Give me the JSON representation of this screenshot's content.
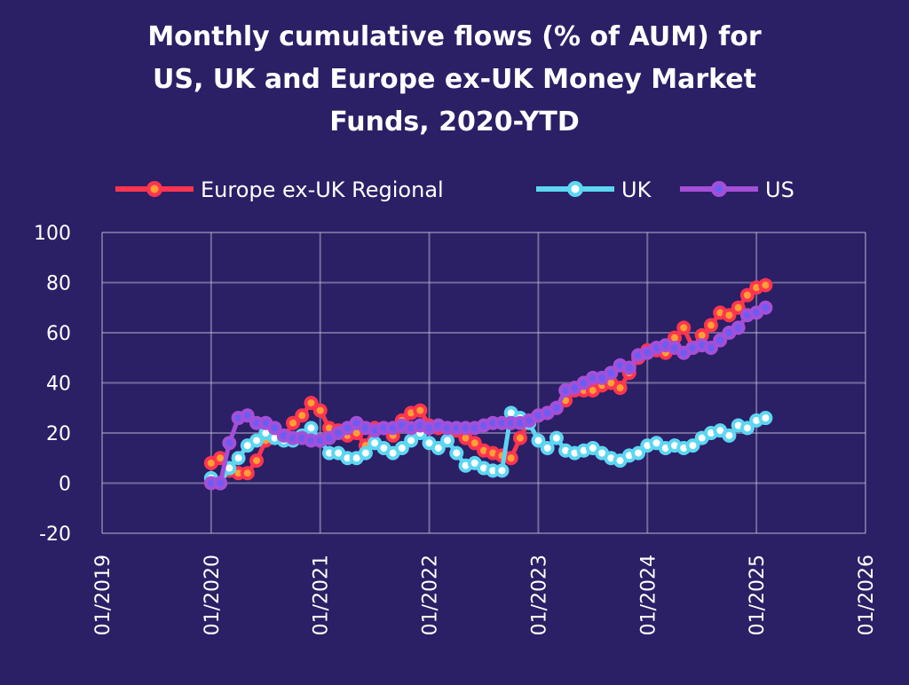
{
  "chart_data": {
    "type": "line",
    "title_lines": [
      "Monthly cumulative flows (% of AUM) for",
      "US, UK and Europe ex-UK Money Market",
      "Funds, 2020-YTD"
    ],
    "xlabel": "",
    "ylabel": "",
    "ylim": [
      -20,
      100
    ],
    "yticks": [
      "100",
      "80",
      "60",
      "40",
      "20",
      "0",
      "-20"
    ],
    "ytick_values": [
      100,
      80,
      60,
      40,
      20,
      0,
      -20
    ],
    "xticks": [
      "01/2019",
      "01/2020",
      "01/2021",
      "01/2022",
      "01/2023",
      "01/2024",
      "01/2025",
      "01/2026"
    ],
    "x_start": "01/2020",
    "x_frequency": "monthly",
    "legend_position": "top",
    "grid": true,
    "series": [
      {
        "name": "Europe ex-UK Regional",
        "color": "#ff3550",
        "marker": "#ffa033",
        "values": [
          8,
          10,
          5,
          4,
          4,
          9,
          17,
          19,
          18,
          24,
          27,
          32,
          29,
          22,
          21,
          19,
          20,
          15,
          22,
          22,
          19,
          25,
          28,
          29,
          23,
          22,
          22,
          21,
          18,
          16,
          13,
          12,
          11,
          10,
          18,
          25,
          27,
          28,
          30,
          33,
          37,
          37,
          37,
          39,
          40,
          38,
          44,
          50,
          53,
          53,
          52,
          58,
          62,
          54,
          59,
          63,
          68,
          67,
          70,
          75,
          78,
          79
        ]
      },
      {
        "name": "UK",
        "color": "#5dd6f2",
        "marker": "#ffffff",
        "values": [
          2,
          0,
          6,
          10,
          15,
          17,
          20,
          18,
          17,
          17,
          19,
          22,
          17,
          12,
          12,
          10,
          10,
          12,
          16,
          14,
          12,
          14,
          17,
          20,
          16,
          14,
          17,
          12,
          7,
          8,
          6,
          5,
          5,
          28,
          26,
          24,
          17,
          14,
          18,
          13,
          12,
          13,
          14,
          12,
          10,
          9,
          11,
          12,
          15,
          16,
          14,
          15,
          14,
          15,
          18,
          20,
          21,
          19,
          23,
          22,
          25,
          26
        ]
      },
      {
        "name": "US",
        "color": "#a54fd8",
        "marker": "#6d5cf2",
        "values": [
          0,
          0,
          16,
          26,
          27,
          24,
          24,
          22,
          19,
          18,
          18,
          17,
          17,
          18,
          20,
          22,
          24,
          22,
          21,
          22,
          22,
          23,
          22,
          23,
          22,
          23,
          22,
          22,
          22,
          22,
          23,
          24,
          24,
          24,
          24,
          25,
          27,
          28,
          30,
          37,
          38,
          40,
          42,
          42,
          44,
          47,
          46,
          51,
          52,
          54,
          55,
          54,
          52,
          54,
          55,
          54,
          57,
          60,
          62,
          67,
          68,
          70
        ]
      }
    ]
  }
}
